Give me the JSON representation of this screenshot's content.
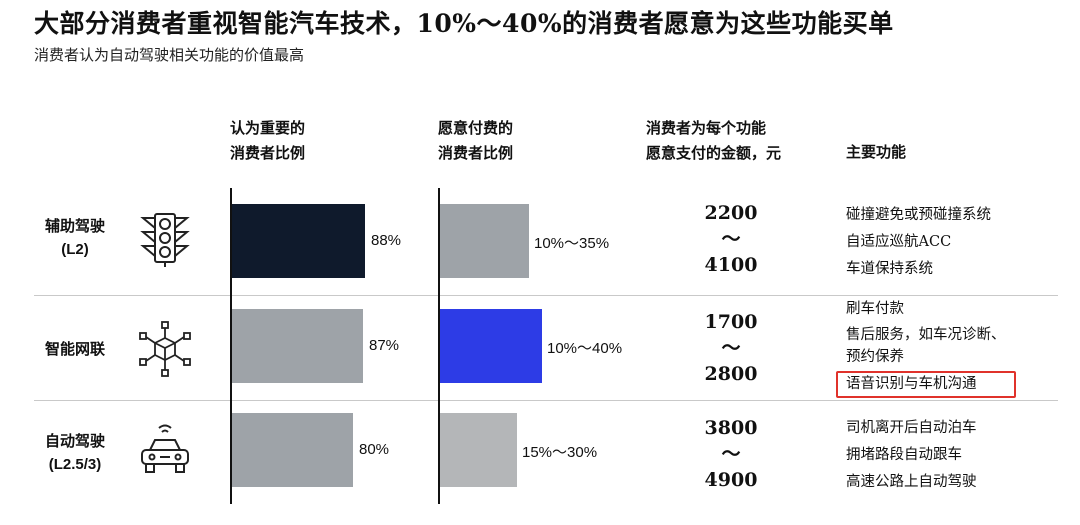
{
  "title": "大部分消费者重视智能汽车技术，10%～40%的消费者愿意为这些功能买单",
  "subtitle": "消费者认为自动驾驶相关功能的价值最高",
  "columns": {
    "important": [
      "认为重要的",
      "消费者比例"
    ],
    "willing": [
      "愿意付费的",
      "消费者比例"
    ],
    "amount": [
      "消费者为每个功能",
      "愿意支付的金额，元"
    ],
    "features": "主要功能"
  },
  "colors": {
    "dark": "#0f1a2c",
    "gray": "#9ea3a8",
    "lightgray": "#b4b6b8",
    "blue": "#2d3ce6",
    "highlight": "#e0322b"
  },
  "rows": [
    {
      "label": "辅助驾驶",
      "sublabel": "(L2)",
      "icon": "traffic-light-icon",
      "important_pct": 88,
      "important_label": "88%",
      "willing_max_pct": 35,
      "willing_label": "10%～35%",
      "amount_low": "2200",
      "amount_sep": "～",
      "amount_high": "4100",
      "features": [
        "碰撞避免或预碰撞系统",
        "自适应巡航ACC",
        "车道保持系统"
      ]
    },
    {
      "label": "智能网联",
      "sublabel": "",
      "icon": "network-cube-icon",
      "important_pct": 87,
      "important_label": "87%",
      "willing_max_pct": 40,
      "willing_label": "10%～40%",
      "amount_low": "1700",
      "amount_sep": "～",
      "amount_high": "2800",
      "features": [
        "刷车付款",
        "售后服务，如车况诊断、",
        "预约保养",
        "语音识别与车机沟通"
      ]
    },
    {
      "label": "自动驾驶",
      "sublabel": "(L2.5/3)",
      "icon": "self-driving-car-icon",
      "important_pct": 80,
      "important_label": "80%",
      "willing_max_pct": 30,
      "willing_label": "15%～30%",
      "amount_low": "3800",
      "amount_sep": "～",
      "amount_high": "4900",
      "features": [
        "司机离开后自动泊车",
        "拥堵路段自动跟车",
        "高速公路上自动驾驶"
      ]
    }
  ],
  "chart_data": {
    "type": "bar",
    "categories": [
      "辅助驾驶 (L2)",
      "智能网联",
      "自动驾驶 (L2.5/3)"
    ],
    "series": [
      {
        "name": "认为重要的消费者比例",
        "values": [
          88,
          87,
          80
        ]
      },
      {
        "name": "愿意付费的消费者比例",
        "values": [
          [
            10,
            35
          ],
          [
            10,
            40
          ],
          [
            15,
            30
          ]
        ]
      }
    ],
    "amount_range": [
      [
        2200,
        4100
      ],
      [
        1700,
        2800
      ],
      [
        3800,
        4900
      ]
    ],
    "unit": "%"
  }
}
